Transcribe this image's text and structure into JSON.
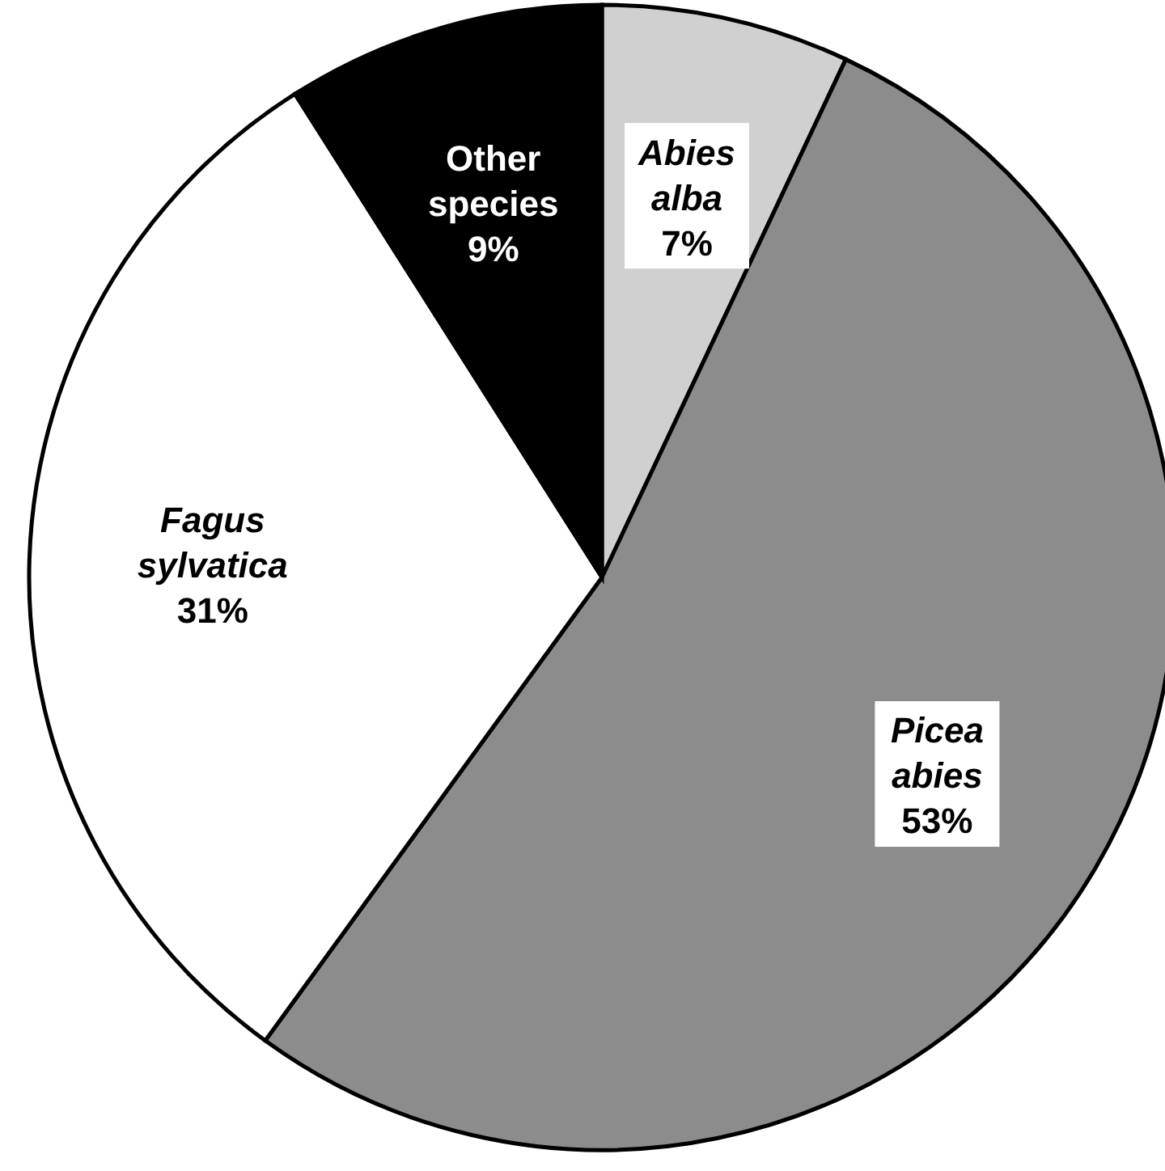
{
  "chart_data": {
    "type": "pie",
    "categories": [
      "Abies alba",
      "Picea abies",
      "Fagus sylvatica",
      "Other species"
    ],
    "values": [
      7,
      53,
      31,
      9
    ],
    "value_labels": [
      "7%",
      "53%",
      "31%",
      "9%"
    ],
    "colors": [
      "#d0d0d0",
      "#8c8c8c",
      "#ffffff",
      "#000000"
    ]
  }
}
